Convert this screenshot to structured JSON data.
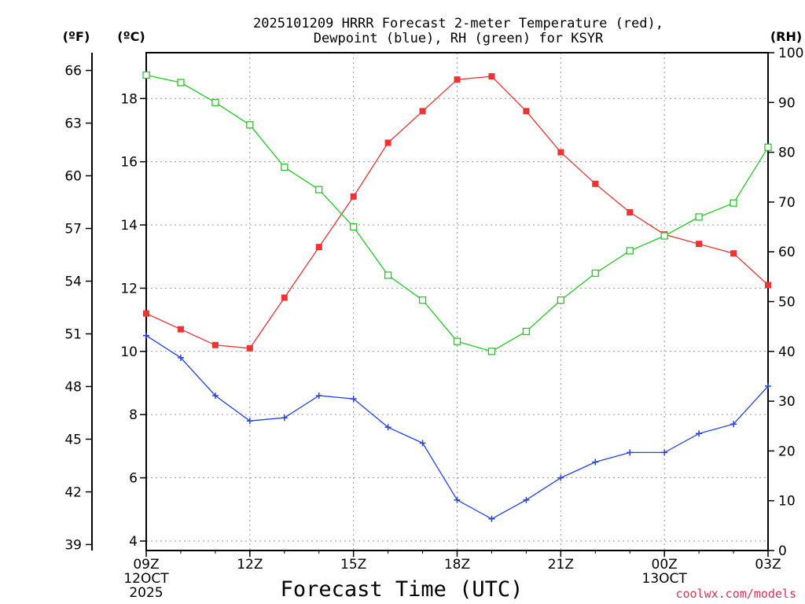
{
  "chart_data": {
    "type": "line",
    "title_line1": "2025101209 HRRR Forecast 2-meter Temperature (red),",
    "title_line2": "Dewpoint (blue), RH (green) for KSYR",
    "xlabel": "Forecast Time (UTC)",
    "credit": "coolwx.com/models",
    "left_unit_f": "(ºF)",
    "left_unit_c": "(ºC)",
    "right_unit": "(RH)",
    "x_hours": [
      0,
      1,
      2,
      3,
      4,
      5,
      6,
      7,
      8,
      9,
      10,
      11,
      12,
      13,
      14,
      15,
      16,
      17,
      18
    ],
    "x_ticks": [
      {
        "hour": 0,
        "lines": [
          "09Z",
          "12OCT",
          "2025"
        ]
      },
      {
        "hour": 3,
        "lines": [
          "12Z"
        ]
      },
      {
        "hour": 6,
        "lines": [
          "15Z"
        ]
      },
      {
        "hour": 9,
        "lines": [
          "18Z"
        ]
      },
      {
        "hour": 12,
        "lines": [
          "21Z"
        ]
      },
      {
        "hour": 15,
        "lines": [
          "00Z",
          "13OCT"
        ]
      },
      {
        "hour": 18,
        "lines": [
          "03Z"
        ]
      }
    ],
    "celsius_axis": {
      "min": 3.7,
      "max": 19.45,
      "ticks": [
        4,
        6,
        8,
        10,
        12,
        14,
        16,
        18
      ]
    },
    "fahrenheit_ticks": [
      39,
      42,
      45,
      48,
      51,
      54,
      57,
      60,
      63,
      66
    ],
    "rh_axis": {
      "min": 0,
      "max": 100,
      "ticks": [
        0,
        10,
        20,
        30,
        40,
        50,
        60,
        70,
        80,
        90,
        100
      ]
    },
    "series": [
      {
        "name": "Temperature",
        "axis": "celsius",
        "color": "#ee3333",
        "marker": "filled-square",
        "values": [
          11.2,
          10.7,
          10.2,
          10.1,
          11.7,
          13.3,
          14.9,
          16.6,
          17.6,
          18.6,
          18.7,
          17.6,
          16.3,
          15.3,
          14.4,
          13.7,
          13.4,
          13.1,
          12.1
        ]
      },
      {
        "name": "Dewpoint",
        "axis": "celsius",
        "color": "#2244ee",
        "marker": "plus",
        "values": [
          10.5,
          9.8,
          8.6,
          7.8,
          7.9,
          8.6,
          8.5,
          7.6,
          7.1,
          5.3,
          4.7,
          5.3,
          6.0,
          6.5,
          6.8,
          6.8,
          7.4,
          7.7,
          8.9
        ]
      },
      {
        "name": "RH",
        "axis": "rh",
        "color": "#22cc22",
        "marker": "open-square",
        "values": [
          95.5,
          94,
          90,
          85.5,
          77,
          72.5,
          65,
          55.3,
          50.3,
          42,
          40,
          44,
          50.3,
          55.7,
          60.2,
          63.2,
          67,
          69.8,
          81
        ]
      }
    ]
  }
}
